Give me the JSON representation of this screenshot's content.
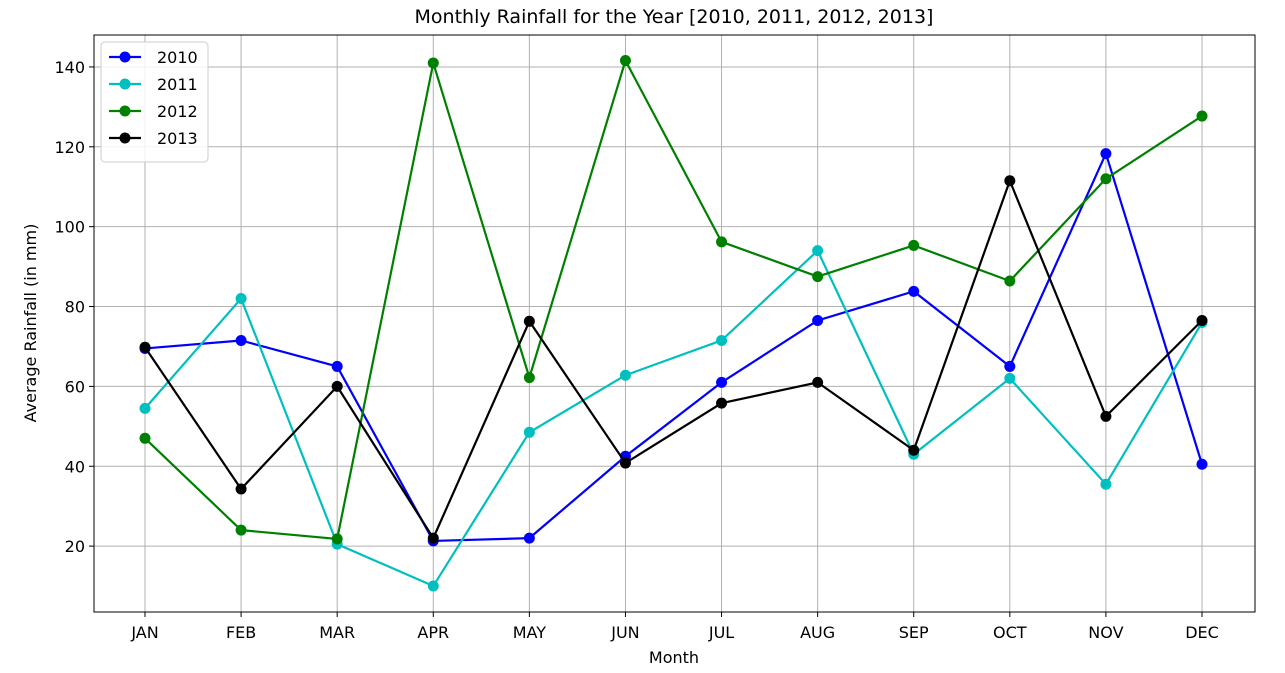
{
  "chart_data": {
    "type": "line",
    "title": "Monthly Rainfall for the Year [2010, 2011, 2012, 2013]",
    "xlabel": "Month",
    "ylabel": "Average Rainfall (in mm)",
    "categories": [
      "JAN",
      "FEB",
      "MAR",
      "APR",
      "MAY",
      "JUN",
      "JUL",
      "AUG",
      "SEP",
      "OCT",
      "NOV",
      "DEC"
    ],
    "ylim": [
      3.5,
      148
    ],
    "yticks": [
      20,
      40,
      60,
      80,
      100,
      120,
      140
    ],
    "grid": true,
    "legend_position": "top-left",
    "series": [
      {
        "name": "2010",
        "color": "#0000ff",
        "values": [
          69.5,
          71.5,
          65,
          21.3,
          22,
          42.5,
          61,
          76.5,
          83.8,
          65,
          118.3,
          40.5
        ]
      },
      {
        "name": "2011",
        "color": "#00bfbf",
        "values": [
          54.5,
          82,
          20.5,
          10,
          48.5,
          62.8,
          71.5,
          94,
          43,
          62,
          35.5,
          76
        ]
      },
      {
        "name": "2012",
        "color": "#008000",
        "values": [
          47,
          24,
          21.8,
          141,
          62.2,
          141.6,
          96.2,
          87.5,
          95.3,
          86.4,
          112,
          127.7
        ]
      },
      {
        "name": "2013",
        "color": "#000000",
        "values": [
          69.8,
          34.3,
          60,
          22,
          76.3,
          40.8,
          55.8,
          61,
          44,
          111.5,
          52.5,
          76.5
        ]
      }
    ]
  }
}
